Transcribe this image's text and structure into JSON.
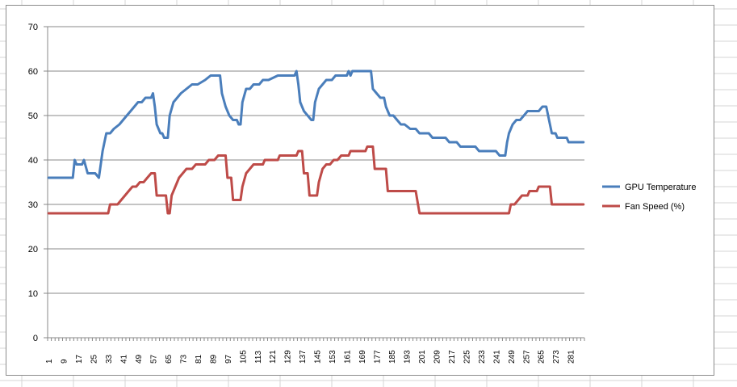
{
  "colors": {
    "sheet_grid": "#d4d4d4",
    "chart_grid": "#888888",
    "axis": "#888888",
    "gpu_temperature": "#4a7ebb",
    "fan_speed": "#be4b48"
  },
  "chart_data": {
    "type": "line",
    "title": "",
    "xlabel": "",
    "ylabel": "",
    "ylim": [
      0,
      70
    ],
    "y_ticks": [
      0,
      10,
      20,
      30,
      40,
      50,
      60,
      70
    ],
    "x_range": [
      1,
      288
    ],
    "x_tick_labels": [
      "1",
      "9",
      "17",
      "25",
      "33",
      "41",
      "49",
      "57",
      "65",
      "73",
      "81",
      "89",
      "97",
      "105",
      "113",
      "121",
      "129",
      "137",
      "145",
      "153",
      "161",
      "169",
      "177",
      "185",
      "193",
      "201",
      "209",
      "217",
      "225",
      "233",
      "241",
      "249",
      "257",
      "265",
      "273",
      "281"
    ],
    "grid": "horizontal",
    "legend_position": "right",
    "series": [
      {
        "name": "GPU Temperature",
        "color": "#4a7ebb",
        "points": [
          [
            1,
            36
          ],
          [
            14,
            36
          ],
          [
            15,
            40
          ],
          [
            16,
            39
          ],
          [
            19,
            39
          ],
          [
            20,
            40
          ],
          [
            22,
            37
          ],
          [
            26,
            37
          ],
          [
            28,
            36
          ],
          [
            30,
            42
          ],
          [
            32,
            46
          ],
          [
            34,
            46
          ],
          [
            36,
            47
          ],
          [
            39,
            48
          ],
          [
            41,
            49
          ],
          [
            43,
            50
          ],
          [
            45,
            51
          ],
          [
            47,
            52
          ],
          [
            49,
            53
          ],
          [
            51,
            53
          ],
          [
            53,
            54
          ],
          [
            56,
            54
          ],
          [
            57,
            55
          ],
          [
            58,
            52
          ],
          [
            59,
            48
          ],
          [
            61,
            46
          ],
          [
            62,
            46
          ],
          [
            63,
            45
          ],
          [
            65,
            45
          ],
          [
            66,
            50
          ],
          [
            68,
            53
          ],
          [
            70,
            54
          ],
          [
            72,
            55
          ],
          [
            75,
            56
          ],
          [
            78,
            57
          ],
          [
            81,
            57
          ],
          [
            85,
            58
          ],
          [
            88,
            59
          ],
          [
            93,
            59
          ],
          [
            94,
            55
          ],
          [
            96,
            52
          ],
          [
            98,
            50
          ],
          [
            100,
            49
          ],
          [
            102,
            49
          ],
          [
            103,
            48
          ],
          [
            104,
            48
          ],
          [
            105,
            53
          ],
          [
            107,
            56
          ],
          [
            109,
            56
          ],
          [
            111,
            57
          ],
          [
            114,
            57
          ],
          [
            116,
            58
          ],
          [
            119,
            58
          ],
          [
            124,
            59
          ],
          [
            133,
            59
          ],
          [
            134,
            60
          ],
          [
            135,
            57
          ],
          [
            136,
            53
          ],
          [
            138,
            51
          ],
          [
            140,
            50
          ],
          [
            142,
            49
          ],
          [
            143,
            49
          ],
          [
            144,
            53
          ],
          [
            146,
            56
          ],
          [
            148,
            57
          ],
          [
            150,
            58
          ],
          [
            153,
            58
          ],
          [
            155,
            59
          ],
          [
            161,
            59
          ],
          [
            162,
            60
          ],
          [
            163,
            59
          ],
          [
            164,
            60
          ],
          [
            174,
            60
          ],
          [
            175,
            56
          ],
          [
            177,
            55
          ],
          [
            179,
            54
          ],
          [
            181,
            54
          ],
          [
            182,
            52
          ],
          [
            184,
            50
          ],
          [
            186,
            50
          ],
          [
            188,
            49
          ],
          [
            190,
            48
          ],
          [
            192,
            48
          ],
          [
            195,
            47
          ],
          [
            198,
            47
          ],
          [
            200,
            46
          ],
          [
            205,
            46
          ],
          [
            207,
            45
          ],
          [
            214,
            45
          ],
          [
            216,
            44
          ],
          [
            220,
            44
          ],
          [
            222,
            43
          ],
          [
            230,
            43
          ],
          [
            232,
            42
          ],
          [
            241,
            42
          ],
          [
            243,
            41
          ],
          [
            246,
            41
          ],
          [
            247,
            44
          ],
          [
            248,
            46
          ],
          [
            250,
            48
          ],
          [
            252,
            49
          ],
          [
            254,
            49
          ],
          [
            256,
            50
          ],
          [
            258,
            51
          ],
          [
            264,
            51
          ],
          [
            266,
            52
          ],
          [
            268,
            52
          ],
          [
            270,
            48
          ],
          [
            271,
            46
          ],
          [
            273,
            46
          ],
          [
            274,
            45
          ],
          [
            279,
            45
          ],
          [
            280,
            44
          ],
          [
            288,
            44
          ]
        ]
      },
      {
        "name": "Fan Speed (%)",
        "color": "#be4b48",
        "points": [
          [
            1,
            28
          ],
          [
            33,
            28
          ],
          [
            34,
            30
          ],
          [
            38,
            30
          ],
          [
            40,
            31
          ],
          [
            42,
            32
          ],
          [
            44,
            33
          ],
          [
            46,
            34
          ],
          [
            48,
            34
          ],
          [
            50,
            35
          ],
          [
            52,
            35
          ],
          [
            54,
            36
          ],
          [
            56,
            37
          ],
          [
            58,
            37
          ],
          [
            59,
            32
          ],
          [
            64,
            32
          ],
          [
            65,
            28
          ],
          [
            66,
            28
          ],
          [
            67,
            32
          ],
          [
            69,
            34
          ],
          [
            71,
            36
          ],
          [
            73,
            37
          ],
          [
            75,
            38
          ],
          [
            78,
            38
          ],
          [
            80,
            39
          ],
          [
            85,
            39
          ],
          [
            87,
            40
          ],
          [
            90,
            40
          ],
          [
            92,
            41
          ],
          [
            96,
            41
          ],
          [
            97,
            36
          ],
          [
            99,
            36
          ],
          [
            100,
            31
          ],
          [
            104,
            31
          ],
          [
            105,
            34
          ],
          [
            107,
            37
          ],
          [
            109,
            38
          ],
          [
            111,
            39
          ],
          [
            116,
            39
          ],
          [
            117,
            40
          ],
          [
            124,
            40
          ],
          [
            125,
            41
          ],
          [
            134,
            41
          ],
          [
            135,
            42
          ],
          [
            137,
            42
          ],
          [
            138,
            37
          ],
          [
            140,
            37
          ],
          [
            141,
            32
          ],
          [
            145,
            32
          ],
          [
            146,
            35
          ],
          [
            148,
            38
          ],
          [
            150,
            39
          ],
          [
            152,
            39
          ],
          [
            154,
            40
          ],
          [
            156,
            40
          ],
          [
            158,
            41
          ],
          [
            162,
            41
          ],
          [
            163,
            42
          ],
          [
            171,
            42
          ],
          [
            172,
            43
          ],
          [
            175,
            43
          ],
          [
            176,
            38
          ],
          [
            182,
            38
          ],
          [
            183,
            33
          ],
          [
            198,
            33
          ],
          [
            200,
            28
          ],
          [
            248,
            28
          ],
          [
            249,
            30
          ],
          [
            251,
            30
          ],
          [
            253,
            31
          ],
          [
            255,
            32
          ],
          [
            258,
            32
          ],
          [
            259,
            33
          ],
          [
            263,
            33
          ],
          [
            264,
            34
          ],
          [
            270,
            34
          ],
          [
            271,
            30
          ],
          [
            288,
            30
          ]
        ]
      }
    ]
  }
}
